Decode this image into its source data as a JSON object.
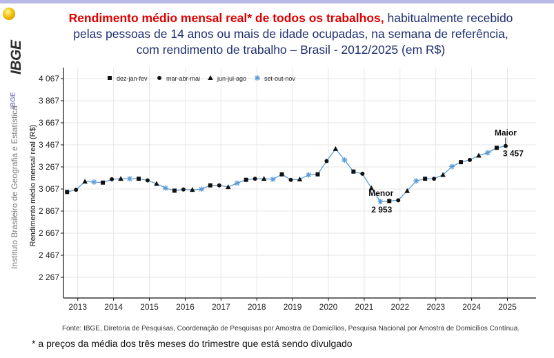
{
  "header": {
    "title_red": "Rendimento médio mensal real* de todos os trabalhos,",
    "title_rest": "habitualmente recebido",
    "title_line2": "pelas pessoas de 14 anos ou mais de idade ocupadas, na semana de referência,",
    "title_line3": "com rendimento de trabalho – Brasil - 2012/2025 (em R$)"
  },
  "sidebar": {
    "logo_text": "IBGE",
    "small_text": "IBGE",
    "institute_name": "Instituto Brasileiro de Geografia e Estatística"
  },
  "footer": {
    "source": "Fonte: IBGE, Diretoria de Pesquisas, Coordenação de Pesquisas por Amostra de Domicílios, Pesquisa Nacional por Amostra de Domicílios Contínua.",
    "footnote": "* a preços da média dos três meses do trimestre que está sendo divulgado"
  },
  "chart_data": {
    "type": "line",
    "title": "Rendimento médio mensal real* de todos os trabalhos, habitualmente recebido pelas pessoas de 14 anos ou mais de idade ocupadas, na semana de referência, com rendimento de trabalho – Brasil - 2012/2025 (em R$)",
    "ylabel": "Rendimento médio mensal real (R$)",
    "xlabel": "",
    "ylim": [
      2067,
      4067
    ],
    "yticks": [
      "4 067",
      "3 867",
      "3 667",
      "3 467",
      "3 267",
      "3 067",
      "2 867",
      "2 667",
      "2 467",
      "2 267"
    ],
    "ytick_values": [
      4067,
      3867,
      3667,
      3467,
      3267,
      3067,
      2867,
      2667,
      2467,
      2267
    ],
    "xticks": [
      "2013",
      "2014",
      "2015",
      "2016",
      "2017",
      "2018",
      "2019",
      "2020",
      "2021",
      "2022",
      "2023",
      "2024",
      "2025"
    ],
    "xlim": [
      2012.6,
      2025.8
    ],
    "x_start": 2012.7,
    "x_step": 0.25,
    "line_color": "#5b9bd5",
    "marker_color": "#111111",
    "grid": true,
    "legend_position": "top-left",
    "legend": [
      {
        "label": "dez-jan-fev",
        "marker": "square"
      },
      {
        "label": "mar-abr-mai",
        "marker": "circle"
      },
      {
        "label": "jun-jul-ago",
        "marker": "triangle"
      },
      {
        "label": "set-out-nov",
        "marker": "asterisk"
      }
    ],
    "values": [
      3040,
      3060,
      3135,
      3130,
      3125,
      3155,
      3160,
      3160,
      3160,
      3145,
      3115,
      3075,
      3052,
      3062,
      3060,
      3065,
      3100,
      3100,
      3085,
      3120,
      3150,
      3160,
      3160,
      3155,
      3200,
      3150,
      3155,
      3195,
      3200,
      3320,
      3430,
      3330,
      3225,
      3205,
      3075,
      2953,
      2958,
      2965,
      3050,
      3140,
      3160,
      3160,
      3195,
      3270,
      3310,
      3330,
      3370,
      3395,
      3440,
      3457
    ],
    "annotations": [
      {
        "label": "Maior",
        "value_label": "3 457",
        "index": 49
      },
      {
        "label": "Menor",
        "value_label": "2 953",
        "index": 35
      }
    ]
  }
}
